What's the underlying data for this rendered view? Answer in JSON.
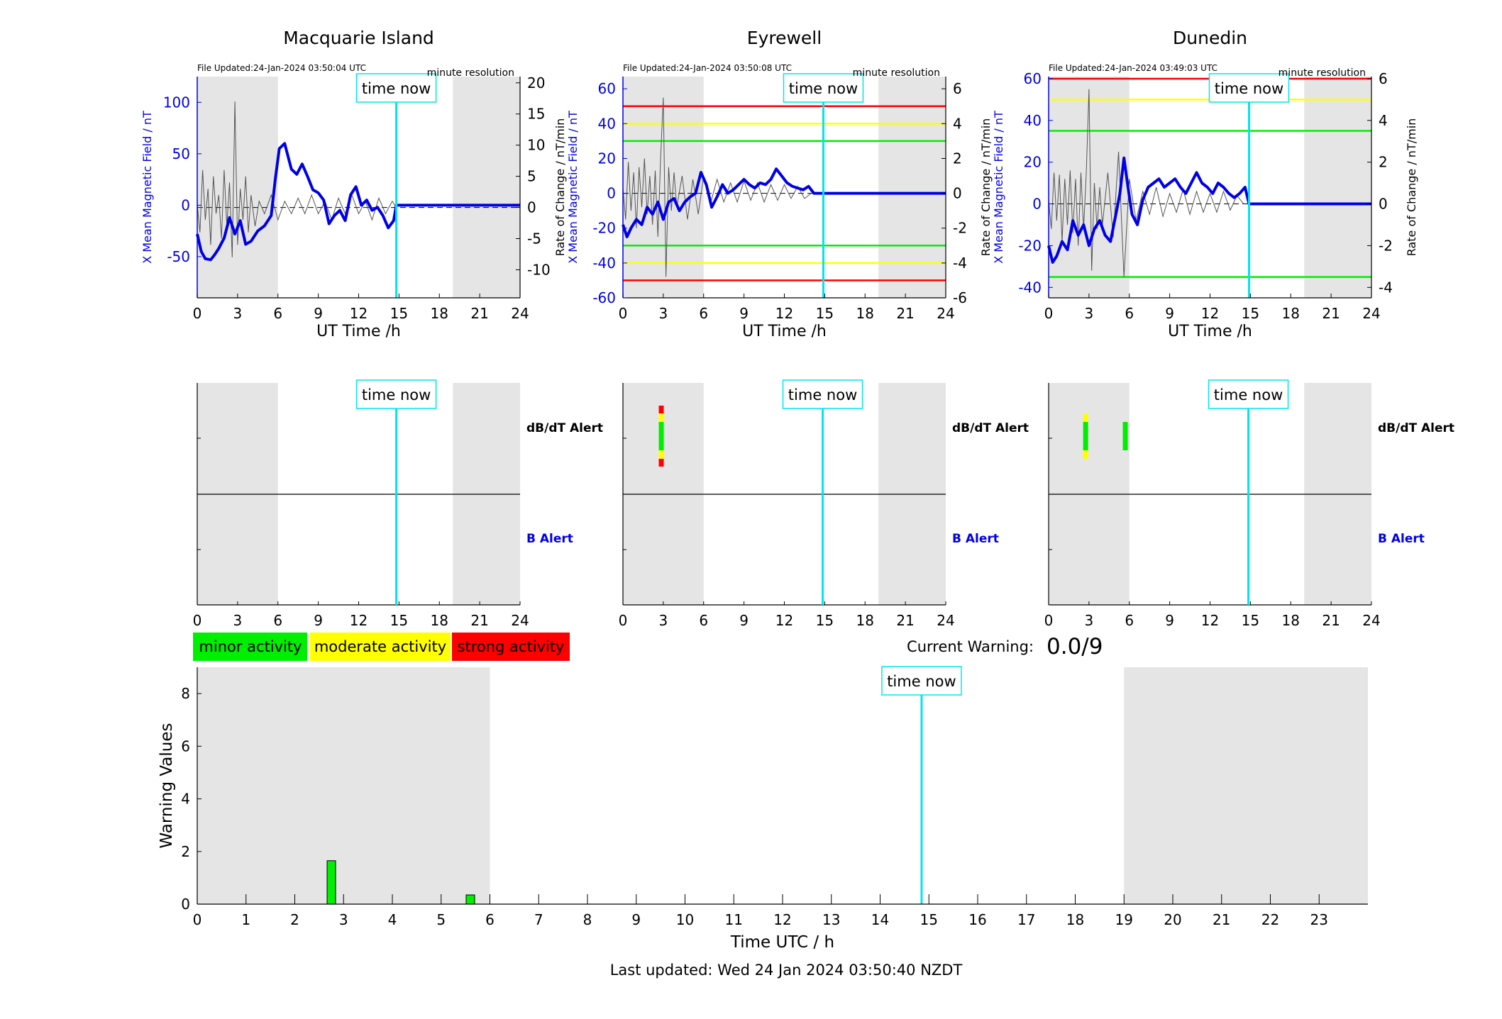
{
  "stations": [
    {
      "name": "Macquarie Island",
      "file_updated": "File Updated:24-Jan-2024 03:50:04 UTC",
      "resolution": "minute resolution",
      "ylabel_left": "X Mean Magnetic Field / nT",
      "ylabel_right": "Rate of Change / nT/min",
      "xlabel": "UT Time /h"
    },
    {
      "name": "Eyrewell",
      "file_updated": "File Updated:24-Jan-2024 03:50:08 UTC",
      "resolution": "minute resolution",
      "ylabel_left": "X Mean Magnetic Field / nT",
      "ylabel_right": "Rate of Change / nT/min",
      "xlabel": "UT Time /h"
    },
    {
      "name": "Dunedin",
      "file_updated": "File Updated:24-Jan-2024 03:49:03 UTC",
      "resolution": "minute resolution",
      "ylabel_left": "X Mean Magnetic Field / nT",
      "ylabel_right": "Rate of Change / nT/min",
      "xlabel": "UT Time /h"
    }
  ],
  "alert_labels": {
    "dbdt": "dB/dT Alert",
    "b": "B Alert"
  },
  "time_now_label": "time now",
  "legend": {
    "minor": "minor activity",
    "moderate": "moderate activity",
    "strong": "strong activity"
  },
  "current_warning": {
    "label": "Current Warning:",
    "value": "0.0/9"
  },
  "last_updated": "Last updated: Wed 24 Jan 2024 03:50:40 NZDT",
  "colors": {
    "field": "#0000e6",
    "roc": "#555555",
    "now_line": "#00e5ee",
    "shade": "#e5e5e5",
    "minor": "#00ee00",
    "moderate": "#ffff00",
    "strong": "#ff0000"
  },
  "chart_data": [
    {
      "type": "line",
      "title": "Macquarie Island",
      "xlabel": "UT Time /h",
      "ylabel": "X Mean Magnetic Field / nT",
      "ylabel_right": "Rate of Change / nT/min",
      "xlim": [
        0,
        24
      ],
      "ylim": [
        -90,
        125
      ],
      "ylim_right": [
        -14.5,
        21
      ],
      "xticks": [
        0,
        3,
        6,
        9,
        12,
        15,
        18,
        21,
        24
      ],
      "yticks": [
        -50,
        0,
        50,
        100
      ],
      "yticks_right": [
        -10,
        -5,
        0,
        5,
        10,
        15,
        20
      ],
      "time_now": 14.8,
      "shaded_hours": [
        [
          0,
          6
        ],
        [
          19,
          24
        ]
      ],
      "thresholds": [],
      "series": [
        {
          "name": "",
          "x": [
            0,
            0.3,
            0.6,
            1,
            1.3,
            1.6,
            2,
            2.4,
            2.8,
            3.2,
            3.6,
            4,
            4.5,
            5,
            5.5,
            5.8,
            6.1,
            6.5,
            7,
            7.4,
            7.8,
            8.2,
            8.6,
            9,
            9.4,
            9.8,
            10.2,
            10.6,
            11,
            11.4,
            11.8,
            12.2,
            12.6,
            13,
            13.4,
            13.8,
            14.2,
            14.6,
            14.8,
            24
          ],
          "y": [
            -28,
            -45,
            -52,
            -53,
            -48,
            -42,
            -32,
            -12,
            -28,
            -15,
            -38,
            -35,
            -25,
            -20,
            -10,
            25,
            55,
            60,
            35,
            30,
            40,
            28,
            15,
            12,
            5,
            -18,
            -10,
            -5,
            -15,
            10,
            18,
            0,
            5,
            -5,
            -2,
            -10,
            -22,
            -15,
            0,
            0
          ]
        },
        {
          "name": "",
          "axis": "right",
          "x": [
            0,
            0.2,
            0.4,
            0.6,
            0.8,
            1,
            1.2,
            1.4,
            1.6,
            1.8,
            2,
            2.2,
            2.4,
            2.6,
            2.8,
            3,
            3.2,
            3.4,
            3.6,
            3.8,
            4,
            4.3,
            4.6,
            5,
            5.5,
            6,
            6.5,
            7,
            7.5,
            8,
            8.5,
            9,
            9.5,
            10,
            10.5,
            11,
            11.5,
            12,
            12.5,
            13,
            13.5,
            14,
            14.5,
            14.8
          ],
          "y": [
            0.5,
            -4,
            6,
            -2,
            3,
            -6,
            5,
            -1,
            2,
            -5,
            6,
            -3,
            4,
            -8,
            17,
            -6,
            3,
            -2,
            5,
            -4,
            2,
            -3,
            1,
            -1,
            2,
            -2,
            1,
            -1,
            1.5,
            -1,
            2,
            -1,
            1,
            -2,
            1.5,
            -1,
            2,
            -1,
            1,
            -2,
            1.5,
            -1,
            1,
            0
          ]
        }
      ]
    },
    {
      "type": "line",
      "title": "Eyrewell",
      "xlabel": "UT Time /h",
      "ylabel": "X Mean Magnetic Field / nT",
      "ylabel_right": "Rate of Change / nT/min",
      "xlim": [
        0,
        24
      ],
      "ylim": [
        -60,
        67
      ],
      "ylim_right": [
        -6,
        6.7
      ],
      "xticks": [
        0,
        3,
        6,
        9,
        12,
        15,
        18,
        21,
        24
      ],
      "yticks": [
        -60,
        -40,
        -20,
        0,
        20,
        40,
        60
      ],
      "yticks_right": [
        -6,
        -4,
        -2,
        0,
        2,
        4,
        6
      ],
      "time_now": 14.9,
      "shaded_hours": [
        [
          0,
          6
        ],
        [
          19,
          24
        ]
      ],
      "thresholds": [
        {
          "value": 50,
          "level": "strong"
        },
        {
          "value": 40,
          "level": "moderate"
        },
        {
          "value": 30,
          "level": "minor"
        },
        {
          "value": -30,
          "level": "minor"
        },
        {
          "value": -40,
          "level": "moderate"
        },
        {
          "value": -50,
          "level": "strong"
        }
      ],
      "series": [
        {
          "name": "",
          "x": [
            0,
            0.3,
            0.6,
            1,
            1.4,
            1.8,
            2.2,
            2.6,
            3,
            3.4,
            3.8,
            4.2,
            4.6,
            5,
            5.4,
            5.8,
            6.2,
            6.6,
            7,
            7.4,
            7.8,
            8.2,
            8.6,
            9,
            9.4,
            9.8,
            10.2,
            10.6,
            11,
            11.4,
            11.8,
            12.2,
            12.6,
            13,
            13.4,
            13.8,
            14.2,
            24
          ],
          "y": [
            -18,
            -25,
            -20,
            -15,
            -18,
            -8,
            -12,
            -5,
            -15,
            -5,
            -3,
            -10,
            -5,
            -2,
            0,
            12,
            5,
            -8,
            -2,
            5,
            0,
            2,
            5,
            8,
            5,
            3,
            6,
            5,
            8,
            14,
            10,
            6,
            4,
            3,
            2,
            4,
            0,
            0
          ]
        },
        {
          "name": "",
          "axis": "right",
          "x": [
            0,
            0.2,
            0.4,
            0.6,
            0.8,
            1,
            1.2,
            1.4,
            1.6,
            1.8,
            2,
            2.2,
            2.4,
            2.6,
            2.8,
            3,
            3.2,
            3.4,
            3.6,
            3.8,
            4,
            4.4,
            4.8,
            5.2,
            5.6,
            6,
            6.5,
            7,
            7.5,
            8,
            8.5,
            9,
            9.5,
            10,
            10.5,
            11,
            11.5,
            12,
            12.5,
            13,
            13.5,
            14
          ],
          "y": [
            0.3,
            -1.5,
            1.8,
            -1,
            1.2,
            -2,
            1.5,
            -0.8,
            2,
            -1.2,
            1,
            -1.8,
            1.3,
            -2.5,
            2,
            5.5,
            -4.8,
            1.5,
            -1,
            1.2,
            -0.8,
            1,
            -1.5,
            0.8,
            -1.2,
            1,
            -0.6,
            0.8,
            -0.5,
            0.6,
            -0.5,
            0.7,
            -0.4,
            0.6,
            -0.5,
            0.5,
            -0.4,
            0.5,
            -0.3,
            0.4,
            -0.3,
            0
          ]
        }
      ]
    },
    {
      "type": "line",
      "title": "Dunedin",
      "xlabel": "UT Time /h",
      "ylabel": "X Mean Magnetic Field / nT",
      "ylabel_right": "Rate of Change / nT/min",
      "xlim": [
        0,
        24
      ],
      "ylim": [
        -45,
        61
      ],
      "ylim_right": [
        -4.5,
        6.1
      ],
      "xticks": [
        0,
        3,
        6,
        9,
        12,
        15,
        18,
        21,
        24
      ],
      "yticks": [
        -40,
        -20,
        0,
        20,
        40,
        60
      ],
      "yticks_right": [
        -4,
        -2,
        0,
        2,
        4,
        6
      ],
      "time_now": 14.9,
      "shaded_hours": [
        [
          0,
          6
        ],
        [
          19,
          24
        ]
      ],
      "thresholds": [
        {
          "value": 60,
          "level": "strong"
        },
        {
          "value": 50,
          "level": "moderate"
        },
        {
          "value": 35,
          "level": "minor"
        },
        {
          "value": -35,
          "level": "minor"
        }
      ],
      "series": [
        {
          "name": "",
          "x": [
            0,
            0.3,
            0.6,
            1,
            1.4,
            1.8,
            2.2,
            2.6,
            3,
            3.4,
            3.8,
            4.2,
            4.6,
            5,
            5.3,
            5.6,
            5.9,
            6.2,
            6.6,
            7,
            7.4,
            7.8,
            8.2,
            8.6,
            9,
            9.4,
            9.8,
            10.2,
            10.6,
            11,
            11.4,
            11.8,
            12.2,
            12.6,
            13,
            13.4,
            13.8,
            14.2,
            14.6,
            14.9,
            24
          ],
          "y": [
            -20,
            -28,
            -25,
            -18,
            -22,
            -8,
            -15,
            -10,
            -20,
            -12,
            -8,
            -15,
            -18,
            -5,
            5,
            22,
            8,
            -5,
            -10,
            2,
            8,
            10,
            12,
            8,
            10,
            12,
            8,
            5,
            10,
            15,
            10,
            8,
            5,
            10,
            8,
            5,
            3,
            5,
            8,
            0,
            0
          ]
        },
        {
          "name": "",
          "axis": "right",
          "x": [
            0,
            0.2,
            0.4,
            0.6,
            0.8,
            1,
            1.2,
            1.4,
            1.6,
            1.8,
            2,
            2.2,
            2.4,
            2.6,
            2.8,
            3,
            3.2,
            3.4,
            3.6,
            3.8,
            4,
            4.4,
            4.8,
            5.2,
            5.6,
            6,
            6.5,
            7,
            7.5,
            8,
            8.5,
            9,
            9.5,
            10,
            10.5,
            11,
            11.5,
            12,
            12.5,
            13,
            13.5,
            14,
            14.5
          ],
          "y": [
            0.2,
            -1.2,
            1.5,
            -0.8,
            1.4,
            -1.8,
            1.2,
            -1,
            1.6,
            -1.4,
            1.2,
            -2,
            1.5,
            -1.2,
            1.5,
            5.5,
            -3.2,
            1,
            -1.2,
            0.8,
            -1,
            1.5,
            -1.6,
            2.5,
            -3.5,
            1.2,
            -0.8,
            0.6,
            -0.5,
            0.8,
            -0.6,
            0.5,
            -0.4,
            0.7,
            -0.5,
            0.6,
            -0.4,
            0.5,
            -0.4,
            0.6,
            -0.3,
            0.4,
            0
          ]
        }
      ]
    },
    {
      "type": "bar",
      "title": "",
      "xlabel": "Time UTC / h",
      "ylabel": "Warning Values",
      "xlim": [
        0,
        24
      ],
      "ylim": [
        0,
        9
      ],
      "xticks": [
        0,
        1,
        2,
        3,
        4,
        5,
        6,
        7,
        8,
        9,
        10,
        11,
        12,
        13,
        14,
        15,
        16,
        17,
        18,
        19,
        20,
        21,
        22,
        23
      ],
      "yticks": [
        0,
        2,
        4,
        6,
        8
      ],
      "time_now": 14.85,
      "shaded_hours": [
        [
          0,
          6
        ],
        [
          19,
          24
        ]
      ],
      "bars": [
        {
          "x": 2.75,
          "value": 1.65
        },
        {
          "x": 5.6,
          "value": 0.35
        }
      ]
    }
  ],
  "alert_data": [
    {
      "time_now": 14.8,
      "dbdt_marks": [],
      "b_marks": []
    },
    {
      "time_now": 14.85,
      "dbdt_marks": [
        {
          "x": 2.85,
          "segments": [
            [
              "strong",
              0.0,
              0.11
            ],
            [
              "moderate",
              0.11,
              0.23
            ],
            [
              "minor",
              0.23,
              0.63
            ],
            [
              "moderate",
              0.63,
              0.75
            ],
            [
              "strong",
              0.75,
              0.86
            ]
          ]
        }
      ],
      "b_marks": []
    },
    {
      "time_now": 14.85,
      "dbdt_marks": [
        {
          "x": 2.75,
          "segments": [
            [
              "moderate",
              0.11,
              0.23
            ],
            [
              "minor",
              0.23,
              0.63
            ],
            [
              "moderate",
              0.63,
              0.75
            ]
          ]
        },
        {
          "x": 5.7,
          "segments": [
            [
              "minor",
              0.23,
              0.63
            ]
          ]
        }
      ],
      "b_marks": []
    }
  ]
}
